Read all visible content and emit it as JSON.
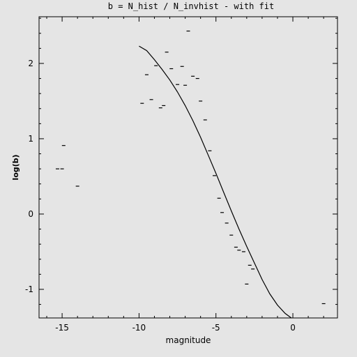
{
  "chart_data": {
    "type": "scatter",
    "title": "b = N_hist / N_invhist - with fit",
    "xlabel": "magnitude",
    "ylabel": "log(b)",
    "xlim": [
      -16.5,
      2.9
    ],
    "ylim": [
      -1.38,
      2.62
    ],
    "x_ticks": [
      -15,
      -10,
      -5,
      0
    ],
    "x_tick_labels": [
      "-15",
      "-10",
      "-5",
      "0"
    ],
    "y_ticks": [
      -1,
      0,
      1,
      2
    ],
    "y_tick_labels": [
      "-1",
      "0",
      "1",
      "2"
    ],
    "marker": "horizontal-dash",
    "grid": false,
    "legend": "none",
    "series": [
      {
        "type": "scatter",
        "points": [
          [
            -15.3,
            0.6
          ],
          [
            -15.0,
            0.6
          ],
          [
            -14.9,
            0.91
          ],
          [
            -14.0,
            0.37
          ],
          [
            -9.8,
            1.47
          ],
          [
            -9.5,
            1.85
          ],
          [
            -9.2,
            1.52
          ],
          [
            -8.9,
            1.97
          ],
          [
            -8.6,
            1.41
          ],
          [
            -8.4,
            1.44
          ],
          [
            -8.2,
            2.15
          ],
          [
            -7.9,
            1.93
          ],
          [
            -7.5,
            1.72
          ],
          [
            -7.2,
            1.96
          ],
          [
            -7.0,
            1.71
          ],
          [
            -6.8,
            2.43
          ],
          [
            -6.5,
            1.83
          ],
          [
            -6.2,
            1.8
          ],
          [
            -6.0,
            1.5
          ],
          [
            -5.7,
            1.25
          ],
          [
            -5.4,
            0.84
          ],
          [
            -5.1,
            0.51
          ],
          [
            -4.8,
            0.21
          ],
          [
            -4.6,
            0.02
          ],
          [
            -4.3,
            -0.12
          ],
          [
            -4.0,
            -0.28
          ],
          [
            -3.7,
            -0.44
          ],
          [
            -3.5,
            -0.48
          ],
          [
            -3.2,
            -0.5
          ],
          [
            -3.0,
            -0.93
          ],
          [
            -2.8,
            -0.68
          ],
          [
            -2.6,
            -0.73
          ],
          [
            2.0,
            -1.19
          ]
        ]
      },
      {
        "type": "line",
        "points": [
          [
            -10.0,
            2.23
          ],
          [
            -9.5,
            2.17
          ],
          [
            -9.0,
            2.05
          ],
          [
            -8.5,
            1.92
          ],
          [
            -8.0,
            1.78
          ],
          [
            -7.5,
            1.62
          ],
          [
            -7.0,
            1.44
          ],
          [
            -6.5,
            1.24
          ],
          [
            -6.0,
            1.02
          ],
          [
            -5.5,
            0.78
          ],
          [
            -5.0,
            0.54
          ],
          [
            -4.5,
            0.29
          ],
          [
            -4.0,
            0.04
          ],
          [
            -3.5,
            -0.2
          ],
          [
            -3.0,
            -0.43
          ],
          [
            -2.5,
            -0.65
          ],
          [
            -2.0,
            -0.87
          ],
          [
            -1.5,
            -1.06
          ],
          [
            -1.0,
            -1.21
          ],
          [
            -0.5,
            -1.32
          ],
          [
            -0.1,
            -1.38
          ]
        ]
      }
    ]
  }
}
